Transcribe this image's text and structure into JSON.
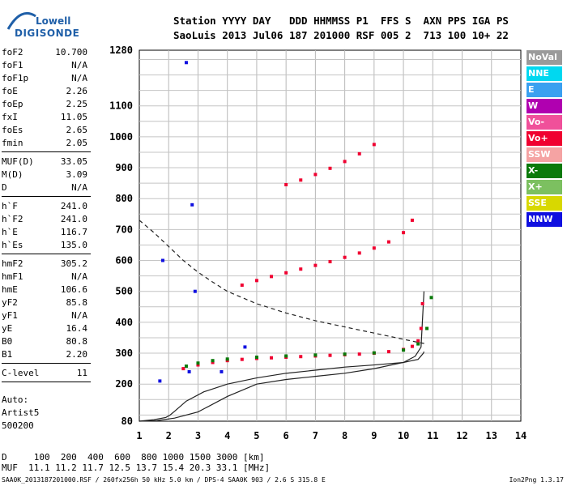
{
  "logo": {
    "line1": "Lowell",
    "line2": "DIGISONDE"
  },
  "header": {
    "line1": "Station YYYY DAY   DDD HHMMSS P1  FFS S  AXN PPS IGA PS",
    "line2": "SaoLuis 2013 Jul06 187 201000 RSF 005 2  713 100 10+ 22"
  },
  "params": [
    {
      "k": "foF2",
      "v": "10.700"
    },
    {
      "k": "foF1",
      "v": "N/A"
    },
    {
      "k": "foF1p",
      "v": "N/A"
    },
    {
      "k": "foE",
      "v": "2.26"
    },
    {
      "k": "foEp",
      "v": "2.25"
    },
    {
      "k": "fxI",
      "v": "11.05"
    },
    {
      "k": "foEs",
      "v": "2.65"
    },
    {
      "k": "fmin",
      "v": "2.05"
    },
    {
      "sep": true
    },
    {
      "k": "MUF(D)",
      "v": "33.05"
    },
    {
      "k": "M(D)",
      "v": "3.09"
    },
    {
      "k": "D",
      "v": "N/A"
    },
    {
      "sep": true
    },
    {
      "k": "h`F",
      "v": "241.0"
    },
    {
      "k": "h`F2",
      "v": "241.0"
    },
    {
      "k": "h`E",
      "v": "116.7"
    },
    {
      "k": "h`Es",
      "v": "135.0"
    },
    {
      "sep": true
    },
    {
      "k": "hmF2",
      "v": "305.2"
    },
    {
      "k": "hmF1",
      "v": "N/A"
    },
    {
      "k": "hmE",
      "v": "106.6"
    },
    {
      "k": "yF2",
      "v": "85.8"
    },
    {
      "k": "yF1",
      "v": "N/A"
    },
    {
      "k": "yE",
      "v": "16.4"
    },
    {
      "k": "B0",
      "v": "80.8"
    },
    {
      "k": "B1",
      "v": "2.20"
    },
    {
      "sep": true
    },
    {
      "k": "C-level",
      "v": "11"
    },
    {
      "sep": true
    }
  ],
  "auto": {
    "line1": "Auto:",
    "line2": "Artist5",
    "line3": "500200"
  },
  "legend": [
    {
      "label": "NoVal",
      "color": "#9a9a9a"
    },
    {
      "label": "NNE",
      "color": "#00d8f0"
    },
    {
      "label": "E",
      "color": "#3aa0f0"
    },
    {
      "label": "W",
      "color": "#b000b0"
    },
    {
      "label": "Vo-",
      "color": "#f0509a"
    },
    {
      "label": "Vo+",
      "color": "#f00030"
    },
    {
      "label": "SSW",
      "color": "#f5a3a3"
    },
    {
      "label": "X-",
      "color": "#0a7a0a"
    },
    {
      "label": "X+",
      "color": "#7cc060"
    },
    {
      "label": "SSE",
      "color": "#d8d800"
    },
    {
      "label": "NNW",
      "color": "#1010e0"
    }
  ],
  "footer": {
    "line1": "D     100  200  400  600  800 1000 1500 3000 [km]",
    "line2": "MUF  11.1 11.2 11.7 12.5 13.7 15.4 20.3 33.1 [MHz]",
    "line3": "SAA0K_2013187201000.RSF / 260fx256h 50 kHz 5.0 km / DPS-4 SAA0K 903 / 2.6 S 315.8 E",
    "line3b": "Ion2Png 1.3.17"
  },
  "chart_data": {
    "type": "scatter",
    "xlim": [
      1,
      14
    ],
    "ylim": [
      80,
      1280
    ],
    "x_ticks": [
      1,
      2,
      3,
      4,
      5,
      6,
      7,
      8,
      9,
      10,
      11,
      12,
      13,
      14
    ],
    "y_ticks": [
      80,
      200,
      300,
      400,
      500,
      600,
      700,
      800,
      900,
      1000,
      1100,
      1280
    ],
    "grid": true,
    "series": [
      {
        "color": "#222222",
        "style": "solid",
        "x": [
          1.0,
          1.5,
          1.9,
          2.05,
          2.2,
          2.6,
          3.2,
          4.0,
          5.0,
          6.0,
          7.0,
          8.0,
          9.0,
          10.0,
          10.5,
          10.68,
          10.7
        ],
        "y": [
          80,
          85,
          92,
          100,
          112,
          145,
          175,
          200,
          220,
          235,
          245,
          255,
          262,
          270,
          280,
          300,
          305
        ]
      },
      {
        "color": "#222222",
        "style": "solid",
        "x": [
          1.0,
          1.6,
          2.2,
          3.0,
          4.0,
          5.0,
          6.0,
          7.0,
          8.0,
          9.0,
          10.0,
          10.4,
          10.6,
          10.7
        ],
        "y": [
          80,
          82,
          90,
          110,
          160,
          200,
          215,
          225,
          235,
          250,
          270,
          290,
          320,
          500
        ]
      },
      {
        "color": "#222222",
        "style": "dashed",
        "x": [
          1.0,
          1.5,
          2.0,
          2.5,
          3.0,
          3.5,
          4.0,
          5.0,
          6.0,
          7.0,
          8.0,
          9.0,
          10.0,
          10.5,
          10.8
        ],
        "y": [
          730,
          690,
          645,
          600,
          562,
          530,
          500,
          460,
          430,
          405,
          385,
          365,
          345,
          335,
          330
        ]
      },
      {
        "color": "#f00030",
        "style": "points",
        "x": [
          2.5,
          3.0,
          3.5,
          4.0,
          4.5,
          5.0,
          5.5,
          6.0,
          6.5,
          7.0,
          7.5,
          8.0,
          8.5,
          9.0,
          9.5,
          10.0,
          10.3,
          10.5,
          10.6,
          10.65
        ],
        "y": [
          250,
          262,
          270,
          276,
          280,
          283,
          285,
          287,
          289,
          291,
          293,
          295,
          297,
          300,
          305,
          312,
          322,
          340,
          380,
          460
        ]
      },
      {
        "color": "#0a7a0a",
        "style": "points",
        "x": [
          2.6,
          3.0,
          3.5,
          4.0,
          5.0,
          6.0,
          7.0,
          8.0,
          9.0,
          10.0,
          10.5,
          10.8,
          10.95
        ],
        "y": [
          258,
          268,
          276,
          281,
          287,
          291,
          294,
          297,
          301,
          310,
          330,
          380,
          480
        ]
      },
      {
        "color": "#f00030",
        "style": "points",
        "x": [
          4.5,
          5.0,
          5.5,
          6.0,
          6.5,
          7.0,
          7.5,
          8.0,
          8.5,
          9.0,
          9.5,
          10.0,
          10.3
        ],
        "y": [
          520,
          535,
          548,
          560,
          572,
          584,
          596,
          610,
          624,
          640,
          660,
          690,
          730
        ]
      },
      {
        "color": "#f00030",
        "style": "points",
        "x": [
          6.0,
          6.5,
          7.0,
          7.5,
          8.0,
          8.5,
          9.0
        ],
        "y": [
          845,
          860,
          878,
          898,
          920,
          945,
          975
        ]
      },
      {
        "color": "#1010e0",
        "style": "points",
        "x": [
          1.7,
          2.7,
          2.9,
          2.8,
          3.8,
          4.6,
          2.6,
          1.8
        ],
        "y": [
          210,
          240,
          500,
          780,
          240,
          320,
          1240,
          600
        ]
      }
    ]
  }
}
